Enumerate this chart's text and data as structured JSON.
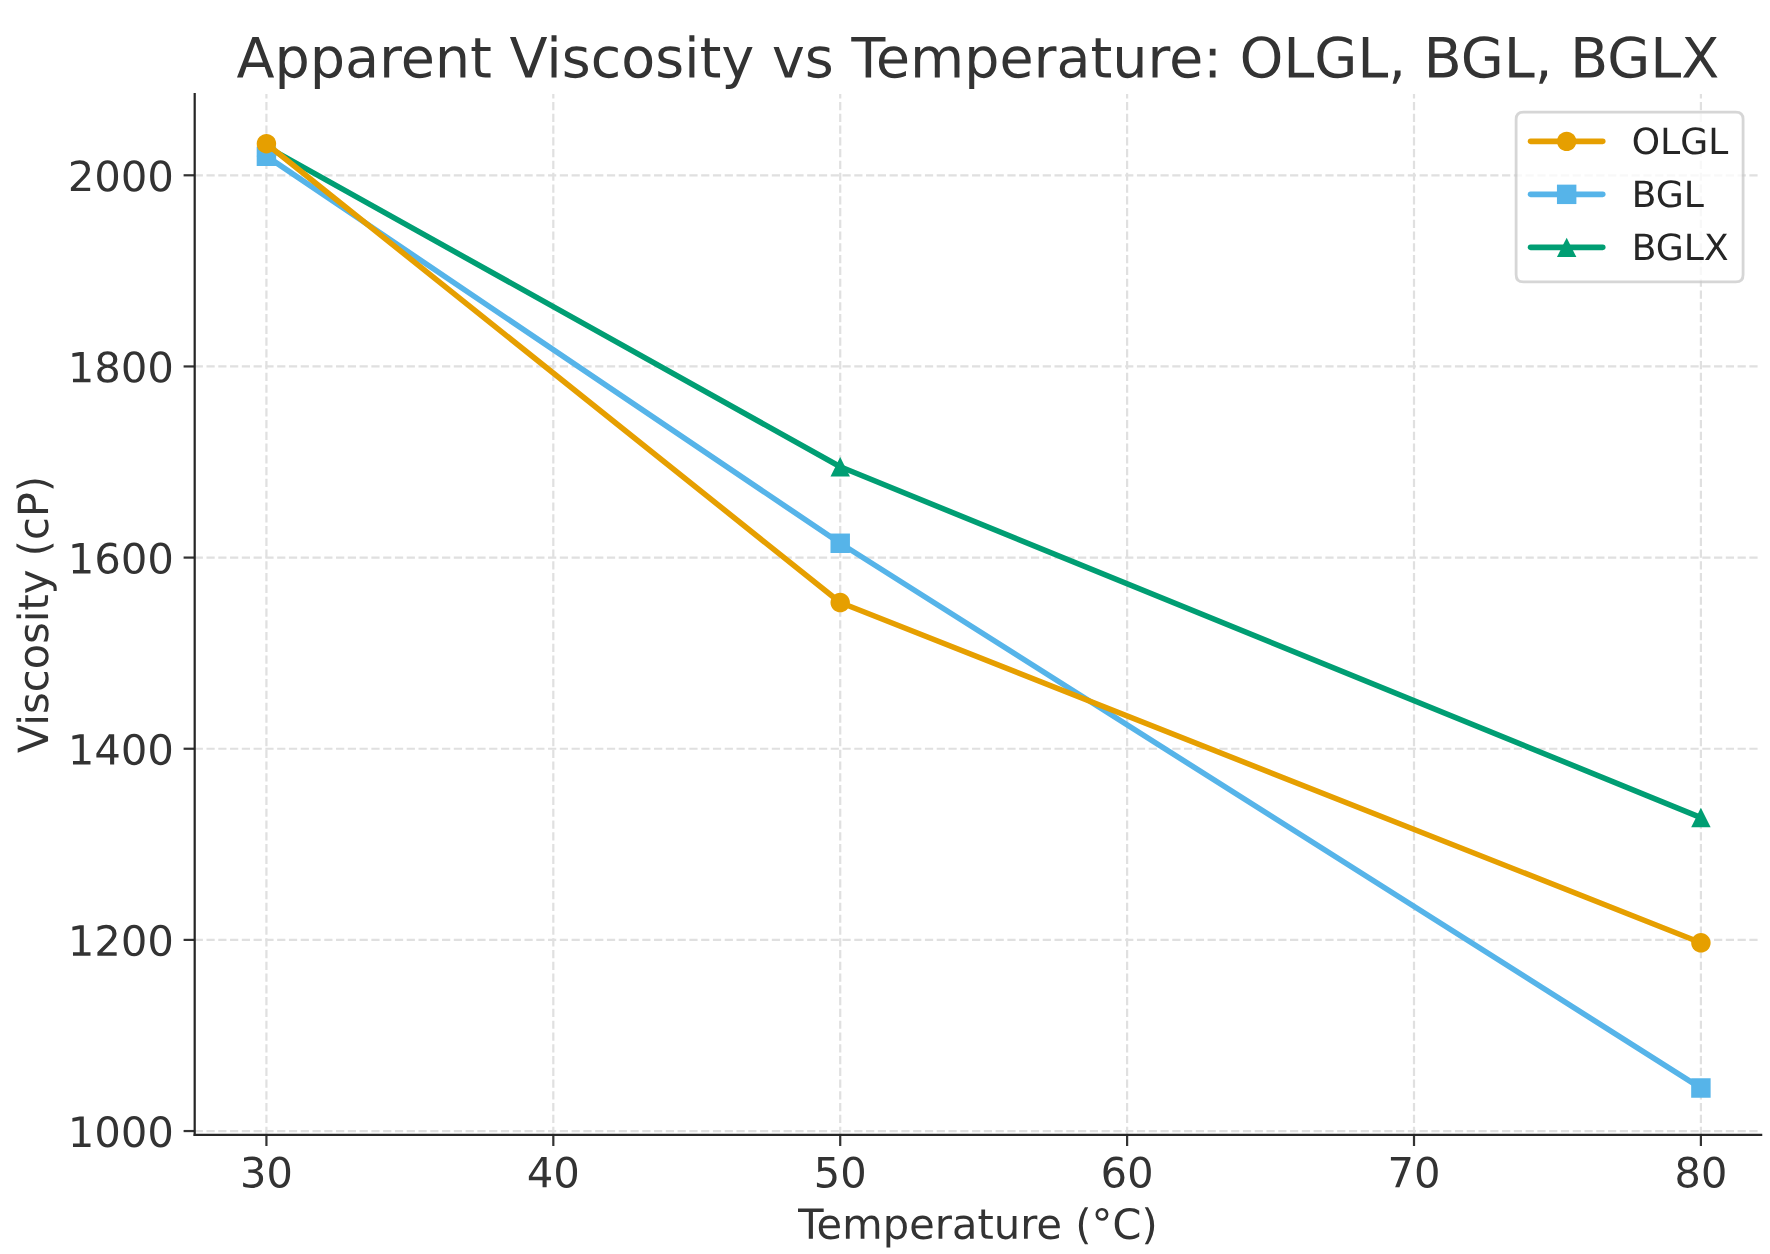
{
  "chart_data": {
    "type": "line",
    "title": "Apparent Viscosity vs Temperature: OLGL, BGL, BGLX",
    "xlabel": "Temperature (°C)",
    "ylabel": "Viscosity (cP)",
    "x": [
      30,
      50,
      80
    ],
    "series": [
      {
        "name": "OLGL",
        "color": "#e69f00",
        "marker": "circle",
        "values": [
          2033,
          1553,
          1197
        ]
      },
      {
        "name": "BGL",
        "color": "#56b4e9",
        "marker": "square",
        "values": [
          2020,
          1615,
          1045
        ]
      },
      {
        "name": "BGLX",
        "color": "#009e73",
        "marker": "triangle",
        "values": [
          2030,
          1695,
          1328
        ]
      }
    ],
    "xlim": [
      27.5,
      82.1
    ],
    "ylim": [
      996,
      2085
    ],
    "xticks": [
      30,
      40,
      50,
      60,
      70,
      80
    ],
    "yticks": [
      1000,
      1200,
      1400,
      1600,
      1800,
      2000
    ],
    "grid": true,
    "legend": "top right",
    "line_style": "solid"
  }
}
